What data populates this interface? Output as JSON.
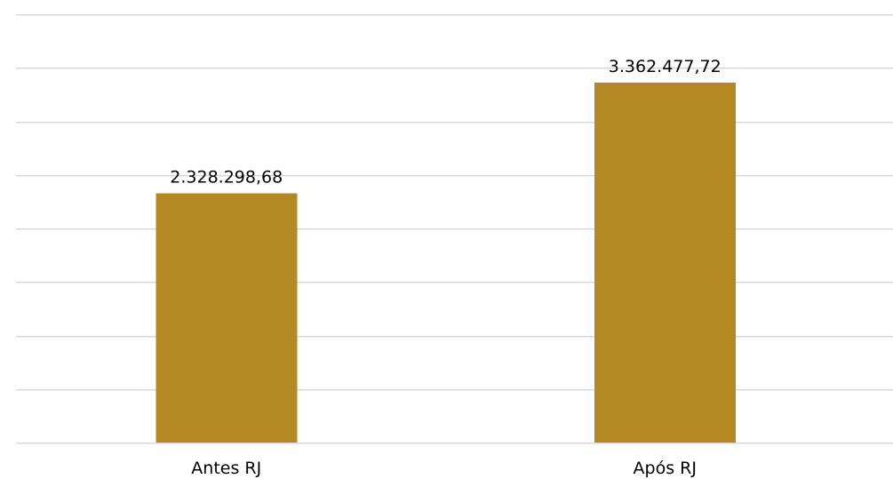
{
  "chart_data": {
    "type": "bar",
    "categories": [
      "Antes RJ",
      "Após RJ"
    ],
    "values": [
      2328298.68,
      3362477.72
    ],
    "data_labels": [
      "2.328.298,68",
      "3.362.477,72"
    ],
    "ylim": [
      0,
      4000000
    ],
    "gridline_step": 500000,
    "grid": true,
    "legend": "none",
    "title": "",
    "xlabel": "",
    "ylabel": "",
    "colors": {
      "bar": "#b48822",
      "grid": "#d9d9d9",
      "text": "#000000",
      "background": "#ffffff"
    }
  }
}
